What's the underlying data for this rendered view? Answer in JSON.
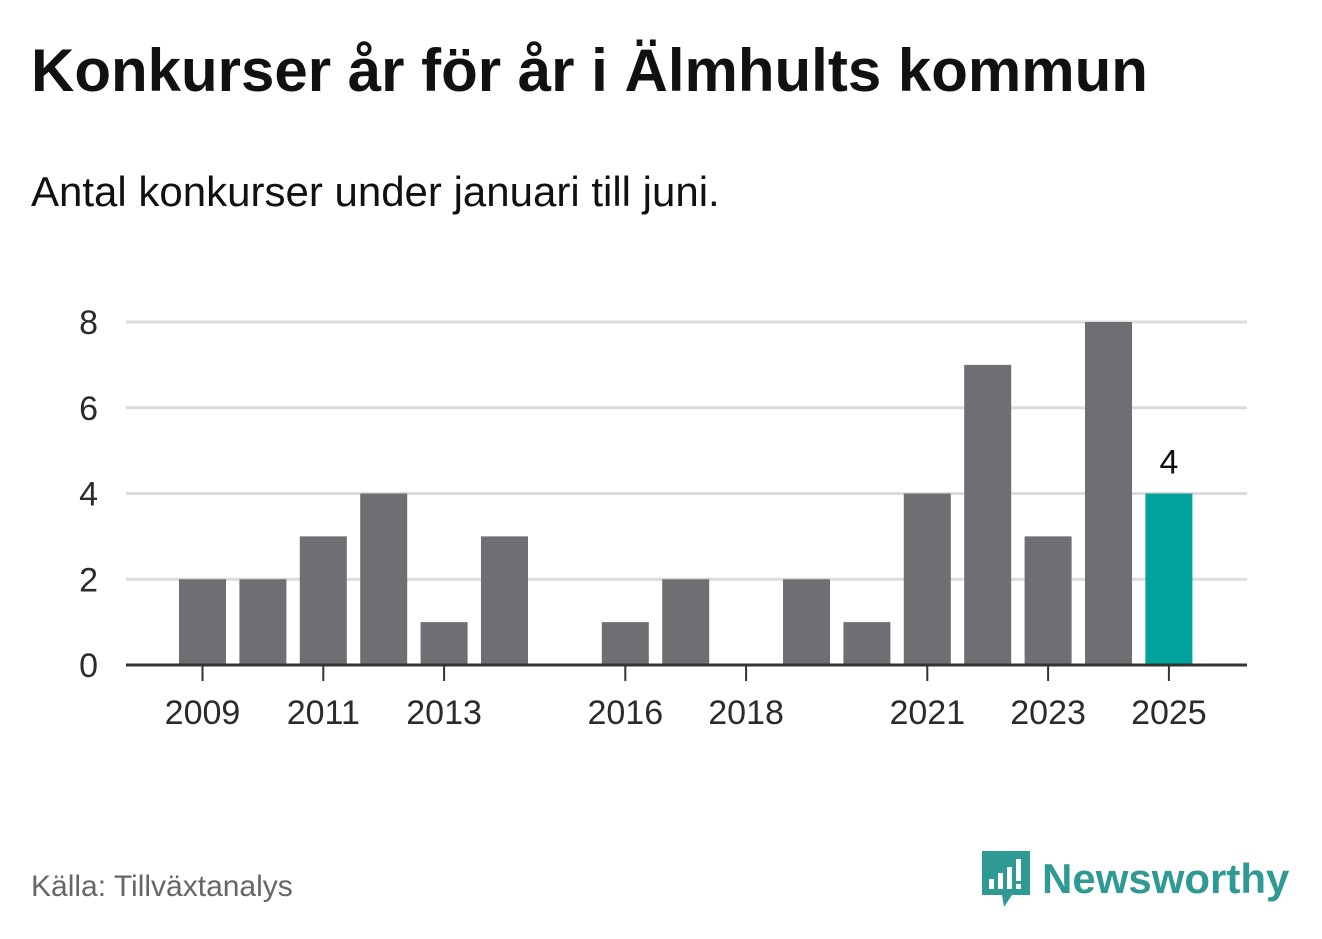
{
  "title": "Konkurser år för år i Älmhults kommun",
  "subtitle": "Antal konkurser under januari till juni.",
  "source": "Källa: Tillväxtanalys",
  "logo": {
    "text": "Newsworthy",
    "icon": "newsworthy-logo-icon"
  },
  "colors": {
    "bar": "#6f6e73",
    "highlight": "#00a39b",
    "grid": "#dcdcdc",
    "axis": "#333333",
    "brand": "#2f9a93"
  },
  "chart_data": {
    "type": "bar",
    "title": "Konkurser år för år i Älmhults kommun",
    "subtitle": "Antal konkurser under januari till juni.",
    "xlabel": "",
    "ylabel": "",
    "categories": [
      "2009",
      "2010",
      "2011",
      "2012",
      "2013",
      "2014",
      "2015",
      "2016",
      "2017",
      "2018",
      "2019",
      "2020",
      "2021",
      "2022",
      "2023",
      "2024",
      "2025"
    ],
    "values": [
      2,
      2,
      3,
      4,
      1,
      3,
      0,
      1,
      2,
      0,
      2,
      1,
      4,
      7,
      3,
      8,
      4
    ],
    "x_tick_labels": [
      "2009",
      "2011",
      "2013",
      "2016",
      "2018",
      "2021",
      "2023",
      "2025"
    ],
    "y_ticks": [
      0,
      2,
      4,
      6,
      8
    ],
    "ylim": [
      0,
      8
    ],
    "grid": true,
    "highlight": {
      "category": "2025",
      "label": "4"
    }
  }
}
